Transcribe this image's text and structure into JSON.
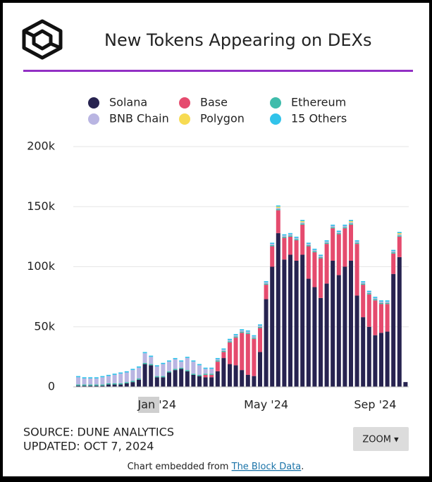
{
  "chart_data": {
    "type": "stacked_bar",
    "title": "New Tokens Appearing on DEXs",
    "categories": [
      null,
      null,
      null,
      null,
      null,
      null,
      null,
      null,
      null,
      null,
      null,
      null,
      null,
      "Jan '24",
      null,
      null,
      null,
      null,
      null,
      null,
      null,
      null,
      null,
      null,
      null,
      null,
      null,
      null,
      null,
      null,
      null,
      "May '24",
      null,
      null,
      null,
      null,
      null,
      null,
      null,
      null,
      null,
      null,
      null,
      null,
      null,
      null,
      null,
      null,
      null,
      "Sep '24",
      null,
      null,
      null,
      null,
      null
    ],
    "series": [
      {
        "name": "Solana",
        "color": "#272350",
        "values": [
          1000,
          1000,
          1000,
          1000,
          1000,
          2000,
          2000,
          2000,
          3000,
          4000,
          6000,
          19000,
          18000,
          8000,
          8000,
          12000,
          14000,
          15000,
          13000,
          10000,
          9000,
          8000,
          8000,
          13000,
          24000,
          19000,
          18000,
          14000,
          10000,
          9000,
          29000,
          73000,
          100000,
          128000,
          106000,
          110000,
          105000,
          110000,
          90000,
          83000,
          74000,
          86000,
          105000,
          93000,
          100000,
          105000,
          76000,
          58000,
          50000,
          43000,
          45000,
          46000,
          94000,
          108000,
          4000
        ]
      },
      {
        "name": "Base",
        "color": "#e54b6e",
        "values": [
          0,
          0,
          0,
          0,
          0,
          0,
          0,
          0,
          0,
          0,
          0,
          0,
          0,
          0,
          0,
          0,
          0,
          0,
          0,
          0,
          0,
          2000,
          2000,
          8000,
          5000,
          18000,
          23000,
          31000,
          34000,
          31000,
          20000,
          12000,
          17000,
          19000,
          18000,
          15000,
          17000,
          25000,
          27000,
          29000,
          33000,
          33000,
          27000,
          34000,
          32000,
          30000,
          43000,
          27000,
          27000,
          29000,
          24000,
          23000,
          17000,
          17000,
          0
        ]
      },
      {
        "name": "Ethereum",
        "color": "#3fbcab",
        "values": [
          1000,
          1000,
          1000,
          1000,
          1000,
          1000,
          1000,
          1000,
          1000,
          1000,
          1000,
          1000,
          1000,
          1000,
          1000,
          1000,
          1000,
          1000,
          1000,
          1000,
          1000,
          1000,
          1000,
          1000,
          1000,
          1000,
          1000,
          1000,
          1000,
          1000,
          1000,
          1000,
          1000,
          1000,
          1000,
          1000,
          1000,
          1000,
          1000,
          1000,
          1000,
          1000,
          1000,
          1000,
          1000,
          1000,
          1000,
          1000,
          1000,
          1000,
          1000,
          1000,
          1000,
          1000,
          0
        ]
      },
      {
        "name": "BNB Chain",
        "color": "#b9b5e2",
        "values": [
          6000,
          5000,
          5000,
          5000,
          6000,
          6000,
          7000,
          8000,
          8000,
          9000,
          9000,
          8000,
          6000,
          8000,
          10000,
          8000,
          8000,
          5000,
          10000,
          10000,
          8000,
          4000,
          4000,
          1000,
          1000,
          1000,
          1000,
          1000,
          1000,
          1000,
          1000,
          1000,
          1000,
          1000,
          1000,
          1000,
          1000,
          1000,
          1000,
          1000,
          1000,
          1000,
          1000,
          1000,
          1000,
          1000,
          1000,
          1000,
          1000,
          1000,
          1000,
          1000,
          1000,
          1000,
          0
        ]
      },
      {
        "name": "Polygon",
        "color": "#f7db52",
        "values": [
          0,
          0,
          0,
          0,
          0,
          0,
          0,
          0,
          0,
          0,
          0,
          0,
          0,
          0,
          0,
          0,
          0,
          0,
          0,
          0,
          0,
          0,
          0,
          0,
          0,
          0,
          0,
          0,
          0,
          0,
          0,
          0,
          0,
          1000,
          0,
          0,
          0,
          1000,
          0,
          0,
          0,
          0,
          0,
          0,
          0,
          1000,
          0,
          0,
          0,
          0,
          0,
          0,
          0,
          1000,
          0
        ]
      },
      {
        "name": "15 Others",
        "color": "#31c3ea",
        "values": [
          1000,
          1000,
          1000,
          1000,
          1000,
          1000,
          1000,
          1000,
          1000,
          1000,
          1000,
          1000,
          1000,
          1000,
          1000,
          1000,
          1000,
          1000,
          1000,
          1000,
          1000,
          1000,
          1000,
          1000,
          1000,
          1000,
          1000,
          1000,
          1000,
          1000,
          1000,
          1000,
          1000,
          1000,
          1000,
          1000,
          1000,
          1000,
          1000,
          1000,
          1000,
          1000,
          1000,
          1000,
          1000,
          1000,
          1000,
          1000,
          1000,
          1000,
          1000,
          1000,
          1000,
          1000,
          0
        ]
      }
    ],
    "ylim": [
      0,
      200000
    ],
    "yticks": [
      0,
      {
        "value": 50000,
        "label": "50k"
      },
      {
        "value": 100000,
        "label": "100k"
      },
      {
        "value": 150000,
        "label": "150k"
      },
      {
        "value": 200000,
        "label": "200k"
      }
    ],
    "grid": true
  },
  "footer": {
    "source": "SOURCE: DUNE ANALYTICS",
    "updated": "UPDATED: OCT 7, 2024",
    "zoom": "ZOOM ▾",
    "embed_text": "Chart embedded from",
    "embed_link": "The Block Data",
    "embed_end": "."
  }
}
